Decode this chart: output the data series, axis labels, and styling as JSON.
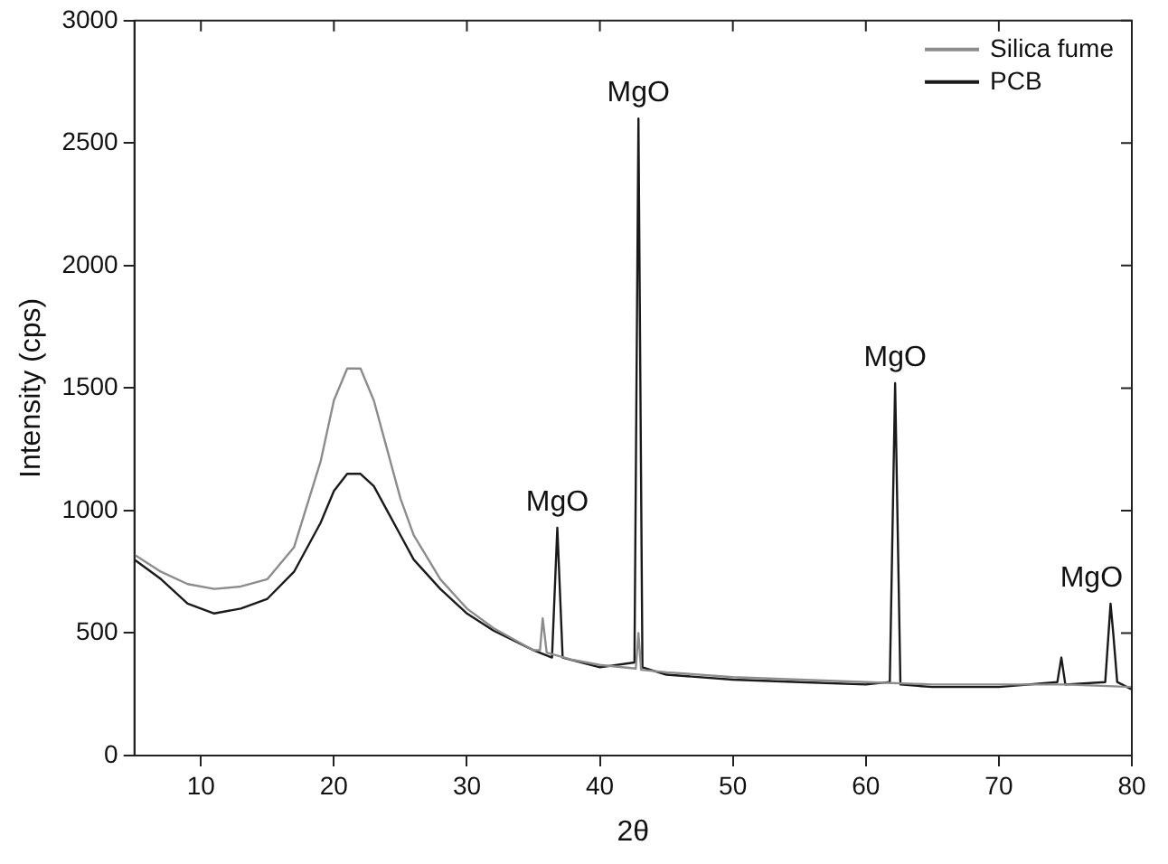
{
  "chart_data": {
    "type": "line",
    "xlabel": "2θ",
    "ylabel": "Intensity (cps)",
    "xlim": [
      5,
      80
    ],
    "xticks": [
      10,
      20,
      30,
      40,
      50,
      60,
      70,
      80
    ],
    "ylim": [
      0,
      3000
    ],
    "yticks": [
      0,
      500,
      1000,
      1500,
      2000,
      2500,
      3000
    ],
    "grid": false,
    "legend": "top right",
    "marker": "none",
    "line_style": "solid",
    "series": [
      {
        "name": "Silica fume",
        "color": "#8c8c8c",
        "x": [
          5,
          7,
          9,
          11,
          13,
          15,
          17,
          19,
          20,
          21,
          22,
          23,
          24,
          25,
          26,
          28,
          30,
          32,
          35,
          35.5,
          35.7,
          36,
          38,
          40,
          42.7,
          42.9,
          43.1,
          45,
          50,
          55,
          60,
          65,
          70,
          75,
          80
        ],
        "values": [
          820,
          750,
          700,
          680,
          690,
          720,
          850,
          1200,
          1450,
          1580,
          1580,
          1450,
          1250,
          1050,
          900,
          720,
          600,
          520,
          430,
          430,
          560,
          420,
          390,
          370,
          355,
          500,
          350,
          340,
          320,
          310,
          300,
          290,
          290,
          290,
          280
        ]
      },
      {
        "name": "PCB",
        "color": "#1a1a1a",
        "x": [
          5,
          7,
          9,
          11,
          13,
          15,
          17,
          19,
          20,
          21,
          22,
          23,
          24,
          25,
          26,
          28,
          30,
          32,
          35,
          36.4,
          36.8,
          37.2,
          40,
          42.6,
          42.9,
          43.2,
          45,
          50,
          55,
          60,
          61.8,
          62.2,
          62.6,
          65,
          70,
          74.4,
          74.7,
          75,
          78,
          78.4,
          78.6,
          78.9,
          80
        ],
        "values": [
          800,
          720,
          620,
          580,
          600,
          640,
          750,
          950,
          1080,
          1150,
          1150,
          1100,
          1000,
          900,
          800,
          680,
          580,
          510,
          430,
          400,
          930,
          400,
          360,
          380,
          2600,
          360,
          330,
          310,
          300,
          290,
          300,
          1520,
          290,
          280,
          280,
          300,
          400,
          290,
          300,
          620,
          500,
          300,
          270
        ]
      }
    ],
    "annotations": [
      {
        "text": "MgO",
        "x": 36.8,
        "y": 930
      },
      {
        "text": "MgO",
        "x": 42.9,
        "y": 2600
      },
      {
        "text": "MgO",
        "x": 62.2,
        "y": 1520
      },
      {
        "text": "MgO",
        "x": 78.4,
        "y": 620
      }
    ]
  }
}
